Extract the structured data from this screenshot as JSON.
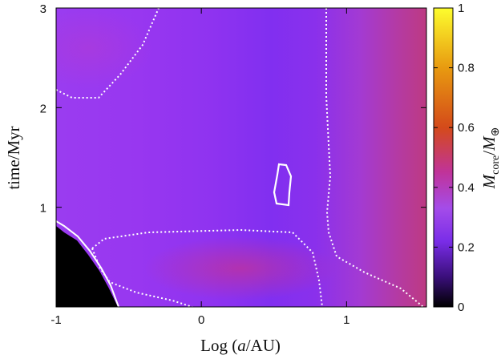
{
  "chart_data": {
    "type": "heatmap",
    "title": "",
    "xlabel": "Log (a/AU)",
    "ylabel": "time/Myr",
    "colorbar_label": "M_core/M_⊕",
    "xlim": [
      -1,
      1.55
    ],
    "ylim": [
      0,
      3
    ],
    "zlim": [
      0,
      1
    ],
    "x_ticks": [
      -1,
      0,
      1
    ],
    "x_tick_labels": [
      "-1",
      "0",
      "1"
    ],
    "y_ticks": [
      1,
      2,
      3
    ],
    "y_tick_labels": [
      "1",
      "2",
      "3"
    ],
    "colorbar_ticks": [
      0,
      0.2,
      0.4,
      0.6,
      0.8,
      1
    ],
    "colorbar_tick_labels": [
      "0",
      "0.2",
      "0.4",
      "0.6",
      "0.8",
      "1"
    ],
    "colormap": [
      "#000000",
      "#3a0f7a",
      "#7a2de8",
      "#a44ce9",
      "#c0339a",
      "#d44a1a",
      "#e89a10",
      "#fdfd2e"
    ],
    "grid": false,
    "x": [
      -1.0,
      -0.75,
      -0.5,
      -0.25,
      0.0,
      0.25,
      0.5,
      0.75,
      1.0,
      1.25,
      1.5
    ],
    "y": [
      0.1,
      0.4,
      0.8,
      1.2,
      1.6,
      2.0,
      2.4,
      2.8
    ],
    "z": [
      [
        0.0,
        0.0,
        0.32,
        0.37,
        0.38,
        0.4,
        0.4,
        0.35,
        0.3,
        0.35,
        0.4
      ],
      [
        0.0,
        0.25,
        0.34,
        0.36,
        0.38,
        0.39,
        0.38,
        0.35,
        0.31,
        0.35,
        0.41
      ],
      [
        0.31,
        0.32,
        0.32,
        0.32,
        0.31,
        0.3,
        0.3,
        0.29,
        0.3,
        0.36,
        0.42
      ],
      [
        0.31,
        0.32,
        0.32,
        0.32,
        0.31,
        0.3,
        0.33,
        0.29,
        0.3,
        0.36,
        0.43
      ],
      [
        0.31,
        0.32,
        0.32,
        0.32,
        0.31,
        0.3,
        0.29,
        0.28,
        0.3,
        0.36,
        0.43
      ],
      [
        0.33,
        0.33,
        0.32,
        0.32,
        0.31,
        0.3,
        0.29,
        0.28,
        0.3,
        0.36,
        0.43
      ],
      [
        0.33,
        0.33,
        0.32,
        0.32,
        0.31,
        0.3,
        0.29,
        0.28,
        0.3,
        0.36,
        0.43
      ],
      [
        0.33,
        0.33,
        0.32,
        0.32,
        0.31,
        0.3,
        0.29,
        0.28,
        0.3,
        0.36,
        0.43
      ]
    ]
  }
}
